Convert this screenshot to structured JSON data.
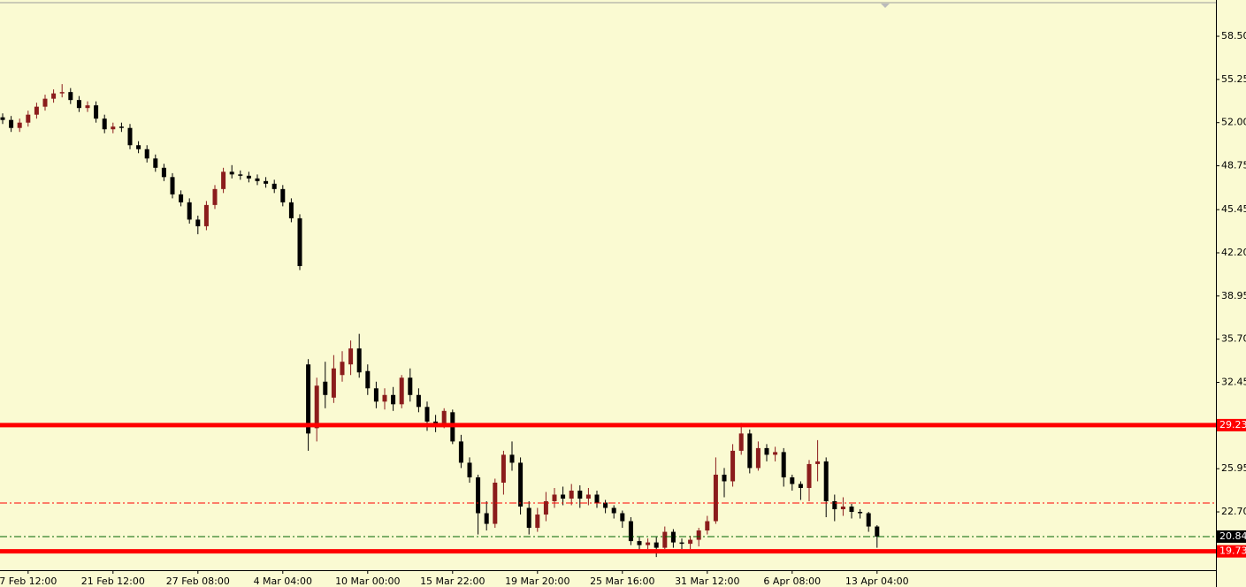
{
  "chart_data": {
    "type": "candlestick",
    "categories": [
      null,
      null,
      null,
      "7 Feb 12:00",
      null,
      null,
      null,
      null,
      null,
      null,
      null,
      null,
      null,
      "21 Feb 12:00",
      null,
      null,
      null,
      null,
      null,
      null,
      null,
      null,
      null,
      "27 Feb 08:00",
      null,
      null,
      null,
      null,
      null,
      null,
      null,
      null,
      null,
      "4 Mar 04:00",
      null,
      null,
      null,
      null,
      null,
      null,
      null,
      null,
      null,
      "10 Mar 00:00",
      null,
      null,
      null,
      null,
      null,
      null,
      null,
      null,
      null,
      "15 Mar 22:00",
      null,
      null,
      null,
      null,
      null,
      null,
      null,
      null,
      null,
      "19 Mar 20:00",
      null,
      null,
      null,
      null,
      null,
      null,
      null,
      null,
      null,
      "25 Mar 16:00",
      null,
      null,
      null,
      null,
      null,
      null,
      null,
      null,
      null,
      "31 Mar 12:00",
      null,
      null,
      null,
      null,
      null,
      null,
      null,
      null,
      null,
      "6 Apr 08:00",
      null,
      null,
      null,
      null,
      null,
      null,
      null,
      null,
      null,
      "13 Apr 04:00"
    ],
    "open": [
      52.4,
      52.2,
      51.6,
      52.0,
      52.6,
      53.2,
      53.8,
      54.2,
      54.3,
      53.7,
      53.1,
      53.3,
      52.3,
      51.5,
      51.7,
      51.6,
      50.3,
      50.0,
      49.3,
      48.6,
      47.9,
      46.6,
      46.0,
      44.7,
      44.2,
      45.8,
      47.0,
      48.3,
      48.1,
      48.0,
      47.8,
      47.6,
      47.4,
      47.0,
      46.0,
      44.8,
      33.8,
      29.0,
      32.5,
      31.3,
      33.0,
      33.8,
      35.0,
      33.3,
      32.0,
      31.0,
      31.5,
      30.8,
      32.8,
      31.5,
      30.6,
      29.5,
      29.2,
      30.2,
      28.0,
      26.4,
      25.3,
      22.6,
      21.8,
      24.9,
      27.0,
      26.4,
      23.0,
      21.5,
      22.5,
      23.5,
      24.0,
      23.7,
      24.3,
      23.7,
      24.0,
      23.4,
      23.0,
      22.6,
      22.0,
      20.5,
      20.2,
      20.4,
      20.0,
      21.2,
      20.4,
      20.3,
      20.6,
      21.3,
      22.0,
      25.5,
      25.0,
      27.3,
      28.6,
      26.0,
      27.5,
      27.0,
      27.2,
      25.3,
      24.8,
      24.5,
      26.3,
      26.5,
      23.5,
      22.9,
      23.1,
      22.7,
      22.6,
      21.6
    ],
    "high": [
      52.7,
      52.5,
      52.3,
      52.9,
      53.5,
      54.1,
      54.5,
      54.9,
      54.6,
      54.0,
      53.6,
      53.6,
      52.6,
      52.0,
      52.0,
      51.9,
      50.6,
      50.3,
      49.6,
      48.9,
      48.2,
      46.9,
      46.3,
      45.0,
      46.1,
      47.3,
      48.6,
      48.8,
      48.4,
      48.3,
      48.1,
      47.9,
      47.7,
      47.3,
      46.3,
      45.1,
      34.2,
      32.8,
      34.0,
      34.5,
      34.8,
      35.6,
      36.1,
      33.8,
      32.5,
      32.0,
      32.1,
      33.0,
      33.5,
      32.0,
      31.0,
      30.0,
      30.5,
      30.4,
      28.5,
      26.8,
      25.5,
      23.5,
      25.2,
      27.3,
      28.0,
      26.8,
      23.5,
      23.0,
      24.2,
      24.5,
      24.6,
      24.8,
      24.7,
      24.5,
      24.3,
      23.6,
      23.2,
      22.8,
      22.3,
      20.8,
      20.7,
      20.8,
      21.6,
      21.4,
      20.7,
      20.9,
      21.5,
      22.4,
      26.8,
      26.0,
      27.8,
      29.4,
      28.9,
      28.0,
      27.8,
      27.6,
      27.5,
      25.5,
      25.0,
      26.6,
      28.1,
      26.8,
      24.0,
      23.8,
      23.3,
      22.9,
      22.7,
      21.7
    ],
    "low": [
      51.9,
      51.3,
      51.3,
      51.7,
      52.3,
      52.9,
      53.5,
      53.9,
      53.4,
      52.8,
      52.8,
      52.0,
      51.2,
      51.2,
      51.3,
      50.0,
      49.7,
      49.0,
      48.3,
      47.6,
      46.3,
      45.7,
      44.4,
      43.6,
      43.9,
      45.5,
      46.7,
      47.8,
      47.7,
      47.5,
      47.3,
      47.1,
      46.7,
      45.7,
      44.5,
      40.9,
      27.3,
      28.0,
      30.5,
      30.9,
      32.5,
      33.0,
      32.8,
      31.5,
      30.5,
      30.4,
      30.3,
      30.5,
      31.0,
      30.2,
      28.8,
      28.7,
      29.0,
      27.8,
      26.0,
      24.9,
      21.0,
      21.3,
      21.5,
      24.0,
      25.8,
      22.5,
      21.0,
      21.2,
      22.0,
      23.0,
      23.2,
      23.2,
      23.0,
      23.2,
      23.0,
      22.6,
      22.2,
      21.5,
      20.2,
      19.8,
      19.9,
      19.3,
      19.9,
      20.0,
      19.9,
      19.9,
      20.1,
      21.0,
      21.8,
      23.8,
      24.6,
      27.0,
      25.6,
      25.8,
      26.5,
      26.5,
      24.6,
      24.3,
      23.6,
      23.5,
      25.0,
      22.3,
      22.0,
      22.4,
      22.2,
      22.2,
      21.2,
      20.0
    ],
    "close": [
      52.2,
      51.6,
      52.0,
      52.6,
      53.2,
      53.8,
      54.2,
      54.3,
      53.7,
      53.1,
      53.3,
      52.3,
      51.5,
      51.7,
      51.6,
      50.3,
      50.0,
      49.3,
      48.6,
      47.9,
      46.6,
      46.0,
      44.7,
      44.2,
      45.8,
      47.0,
      48.3,
      48.1,
      48.0,
      47.8,
      47.6,
      47.4,
      47.0,
      46.0,
      44.8,
      41.2,
      28.6,
      32.2,
      31.5,
      33.5,
      34.0,
      35.0,
      33.2,
      32.0,
      31.0,
      31.5,
      30.8,
      32.8,
      31.5,
      30.6,
      29.5,
      29.2,
      30.3,
      28.0,
      26.4,
      25.3,
      22.6,
      21.8,
      24.9,
      27.0,
      26.4,
      23.1,
      21.5,
      22.5,
      23.5,
      24.0,
      23.7,
      24.3,
      23.7,
      24.0,
      23.4,
      23.0,
      22.6,
      22.0,
      20.5,
      20.2,
      20.4,
      20.0,
      21.2,
      20.4,
      20.3,
      20.6,
      21.3,
      22.0,
      25.5,
      25.0,
      27.3,
      28.6,
      26.0,
      27.5,
      27.0,
      27.2,
      25.3,
      24.8,
      24.5,
      26.3,
      26.5,
      23.5,
      22.9,
      23.1,
      22.7,
      22.6,
      21.6,
      20.84
    ],
    "bull_color": "#8b1c1c",
    "bear_color": "#000000",
    "ylim": [
      18.31,
      61.23
    ],
    "yticks": [
      {
        "value": 58.5,
        "label": "58.50"
      },
      55.25,
      {
        "value": 52,
        "label": "52.00"
      },
      48.75,
      45.45,
      {
        "value": 42.2,
        "label": "42.20"
      },
      38.95,
      {
        "value": 35.7,
        "label": "35.70"
      },
      32.45,
      25.95,
      {
        "value": 22.7,
        "label": "22.70"
      }
    ],
    "levels": [
      {
        "value": 29.23,
        "color": "#ff0000",
        "width": 5,
        "style": "solid",
        "tag_color": "#ff0000"
      },
      {
        "value": 23.37,
        "color": "#ff0000",
        "width": 1,
        "style": "dashdot"
      },
      {
        "value": 20.84,
        "color": "#006400",
        "width": 1,
        "style": "dashdot",
        "tag_color": "#000000"
      },
      {
        "value": 19.73,
        "color": "#ff0000",
        "width": 5,
        "style": "solid",
        "tag_color": "#ff0000"
      }
    ]
  }
}
